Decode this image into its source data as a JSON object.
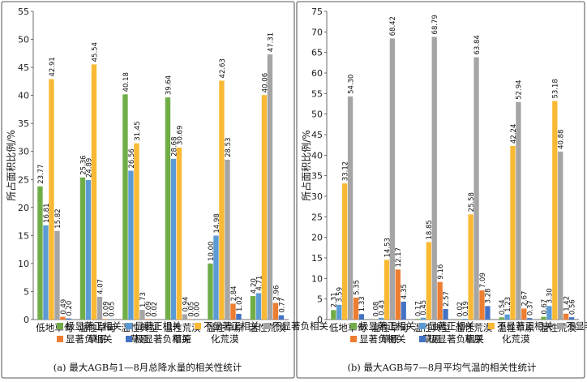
{
  "chart_data": [
    {
      "type": "bar",
      "ylabel": "所占面积比例/%",
      "ylim": [
        0,
        55
      ],
      "yticks": [
        0,
        5,
        10,
        15,
        20,
        25,
        30,
        35,
        40,
        45,
        50,
        55
      ],
      "categories": [
        [
          "低地草甸"
        ],
        [
          "温性草甸",
          "草原"
        ],
        [
          "温性典型",
          "草原"
        ],
        [
          "温性荒漠",
          "草原"
        ],
        [
          "温性草原",
          "化荒漠"
        ],
        [
          "温性荒漠"
        ]
      ],
      "series": [
        {
          "name": "极显著正相关",
          "color": "#70ad47",
          "values": [
            23.77,
            25.36,
            40.18,
            39.64,
            10.0,
            4.2
          ]
        },
        {
          "name": "显著正相关",
          "color": "#5b9bd5",
          "values": [
            16.81,
            24.89,
            26.56,
            28.68,
            14.98,
            4.71
          ]
        },
        {
          "name": "不显著正相关",
          "color": "#f9b935",
          "values": [
            42.91,
            45.54,
            31.45,
            30.69,
            42.63,
            40.06
          ]
        },
        {
          "name": "不显著负相关",
          "color": "#a5a5a5",
          "values": [
            15.82,
            4.07,
            1.73,
            0.94,
            28.53,
            47.31
          ]
        },
        {
          "name": "显著负相关",
          "color": "#ed7d31",
          "values": [
            0.49,
            0.09,
            0.09,
            0.05,
            2.84,
            2.96
          ]
        },
        {
          "name": "极显著负相关",
          "color": "#4472c4",
          "values": [
            0.2,
            0.05,
            0.02,
            0.0,
            1.02,
            0.77
          ]
        }
      ],
      "caption": "(a) 最大AGB与1—8月总降水量的相关性统计"
    },
    {
      "type": "bar",
      "ylabel": "所占面积比例/%",
      "ylim": [
        0,
        75
      ],
      "yticks": [
        0,
        5,
        10,
        15,
        20,
        25,
        30,
        35,
        40,
        45,
        50,
        55,
        60,
        65,
        70,
        75
      ],
      "categories": [
        [
          "低地草甸"
        ],
        [
          "温性草甸",
          "草原"
        ],
        [
          "温性典型",
          "草原"
        ],
        [
          "温性荒漠",
          "草原"
        ],
        [
          "温性草原",
          "化荒漠"
        ],
        [
          "温性荒漠"
        ]
      ],
      "series": [
        {
          "name": "极显著正相关",
          "color": "#70ad47",
          "values": [
            2.31,
            0.08,
            0.17,
            0.02,
            0.54,
            0.67
          ]
        },
        {
          "name": "显著正相关",
          "color": "#5b9bd5",
          "values": [
            3.59,
            0.43,
            0.45,
            0.19,
            1.23,
            3.3
          ]
        },
        {
          "name": "不显著正相关",
          "color": "#f9b935",
          "values": [
            33.12,
            14.53,
            18.85,
            25.58,
            42.24,
            53.18
          ]
        },
        {
          "name": "不显著负相关",
          "color": "#a5a5a5",
          "values": [
            54.3,
            68.42,
            68.79,
            63.84,
            52.94,
            40.88
          ]
        },
        {
          "name": "显著负相关",
          "color": "#ed7d31",
          "values": [
            5.35,
            12.17,
            9.16,
            7.09,
            2.67,
            1.42
          ]
        },
        {
          "name": "极显著负相关",
          "color": "#4472c4",
          "values": [
            1.33,
            4.35,
            2.57,
            3.28,
            0.37,
            0.56
          ]
        }
      ],
      "caption": "(b) 最大AGB与7—8月平均气温的相关性统计"
    }
  ]
}
